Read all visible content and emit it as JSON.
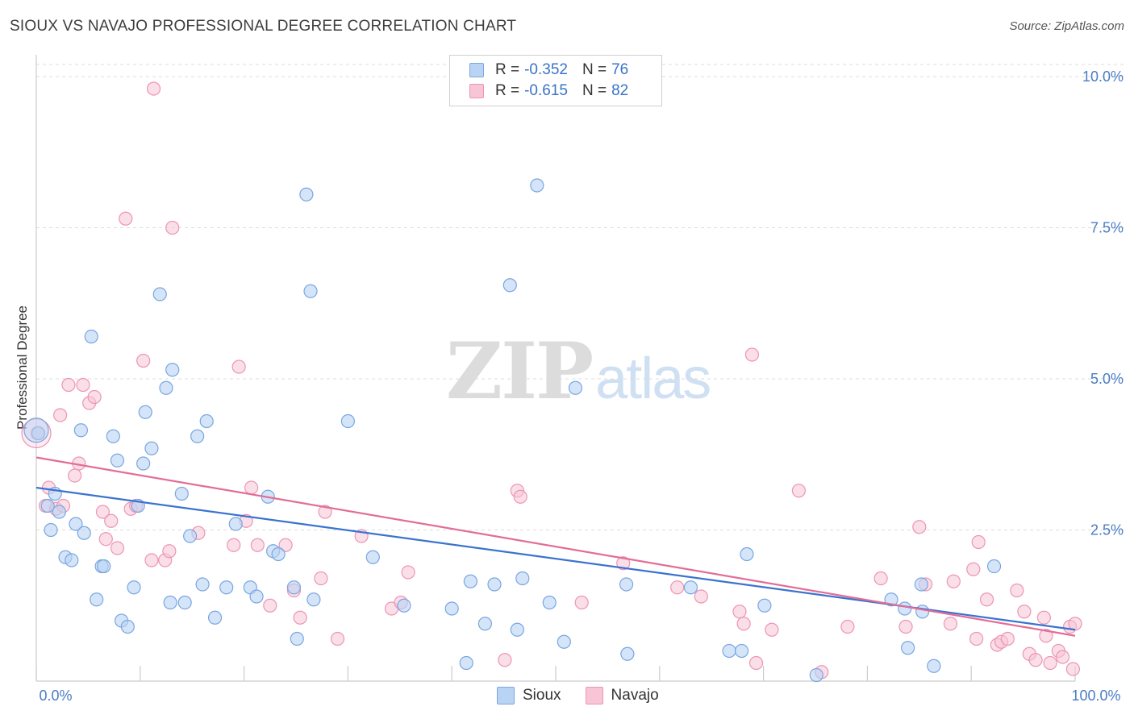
{
  "header": {
    "title": "SIOUX VS NAVAJO PROFESSIONAL DEGREE CORRELATION CHART",
    "source": "Source: ZipAtlas.com"
  },
  "watermark": {
    "zip": "ZIP",
    "atlas": "atlas"
  },
  "legend": {
    "rows": [
      {
        "r_label": "R =",
        "r_value": "-0.352",
        "n_label": "N =",
        "n_value": "76"
      },
      {
        "r_label": "R =",
        "r_value": "-0.615",
        "n_label": "N =",
        "n_value": "82"
      }
    ],
    "bottom": [
      {
        "label": "Sioux"
      },
      {
        "label": "Navajo"
      }
    ]
  },
  "colors": {
    "sioux_fill": "#b9d3f5",
    "sioux_stroke": "#7aa6df",
    "sioux_line": "#3a73cf",
    "navajo_fill": "#f8c5d6",
    "navajo_stroke": "#ec95b4",
    "navajo_line": "#e26d97",
    "tick_label": "#4a7cc4",
    "grid": "#dddddd"
  },
  "chart_data": {
    "type": "scatter",
    "title": "SIOUX VS NAVAJO PROFESSIONAL DEGREE CORRELATION CHART",
    "xlabel": "",
    "ylabel": "Professional Degree",
    "xlim": [
      0,
      100
    ],
    "ylim": [
      0,
      10
    ],
    "x_tick_labels": [
      "0.0%",
      "100.0%"
    ],
    "y_ticks": [
      2.5,
      5.0,
      7.5,
      10.0
    ],
    "y_tick_labels": [
      "2.5%",
      "5.0%",
      "7.5%",
      "10.0%"
    ],
    "grid": true,
    "legend_position": "top-center",
    "series": [
      {
        "name": "Sioux",
        "r": -0.352,
        "n": 76,
        "trend": {
          "x": [
            0,
            100
          ],
          "y": [
            3.2,
            0.85
          ]
        },
        "points": [
          [
            0.2,
            4.1
          ],
          [
            1.1,
            2.9
          ],
          [
            1.4,
            2.5
          ],
          [
            1.8,
            3.1
          ],
          [
            2.2,
            2.8
          ],
          [
            2.8,
            2.05
          ],
          [
            3.4,
            2.0
          ],
          [
            3.8,
            2.6
          ],
          [
            4.3,
            4.15
          ],
          [
            4.6,
            2.45
          ],
          [
            5.3,
            5.7
          ],
          [
            5.8,
            1.35
          ],
          [
            6.3,
            1.9
          ],
          [
            6.5,
            1.9
          ],
          [
            7.4,
            4.05
          ],
          [
            7.8,
            3.65
          ],
          [
            8.2,
            1.0
          ],
          [
            8.8,
            0.9
          ],
          [
            9.4,
            1.55
          ],
          [
            9.8,
            2.9
          ],
          [
            10.3,
            3.6
          ],
          [
            10.5,
            4.45
          ],
          [
            11.1,
            3.85
          ],
          [
            11.9,
            6.4
          ],
          [
            12.5,
            4.85
          ],
          [
            12.9,
            1.3
          ],
          [
            13.1,
            5.15
          ],
          [
            14.0,
            3.1
          ],
          [
            14.3,
            1.3
          ],
          [
            14.8,
            2.4
          ],
          [
            15.5,
            4.05
          ],
          [
            16.0,
            1.6
          ],
          [
            16.4,
            4.3
          ],
          [
            17.2,
            1.05
          ],
          [
            18.3,
            1.55
          ],
          [
            19.2,
            2.6
          ],
          [
            20.6,
            1.55
          ],
          [
            21.2,
            1.4
          ],
          [
            22.3,
            3.05
          ],
          [
            22.8,
            2.15
          ],
          [
            23.3,
            2.1
          ],
          [
            24.8,
            1.55
          ],
          [
            25.1,
            0.7
          ],
          [
            26.0,
            8.05
          ],
          [
            26.4,
            6.45
          ],
          [
            26.7,
            1.35
          ],
          [
            30.0,
            4.3
          ],
          [
            32.4,
            2.05
          ],
          [
            35.4,
            1.25
          ],
          [
            40.0,
            1.2
          ],
          [
            41.4,
            0.3
          ],
          [
            41.8,
            1.65
          ],
          [
            43.2,
            0.95
          ],
          [
            44.1,
            1.6
          ],
          [
            45.6,
            6.55
          ],
          [
            46.3,
            0.85
          ],
          [
            46.8,
            1.7
          ],
          [
            48.2,
            8.2
          ],
          [
            49.4,
            1.3
          ],
          [
            50.8,
            0.65
          ],
          [
            51.9,
            4.85
          ],
          [
            56.8,
            1.6
          ],
          [
            56.9,
            0.45
          ],
          [
            63.0,
            1.55
          ],
          [
            66.7,
            0.5
          ],
          [
            67.9,
            0.5
          ],
          [
            68.4,
            2.1
          ],
          [
            70.1,
            1.25
          ],
          [
            75.1,
            0.1
          ],
          [
            82.3,
            1.35
          ],
          [
            83.6,
            1.2
          ],
          [
            83.9,
            0.55
          ],
          [
            85.2,
            1.6
          ],
          [
            85.3,
            1.15
          ],
          [
            86.4,
            0.25
          ],
          [
            92.2,
            1.9
          ]
        ]
      },
      {
        "name": "Navajo",
        "r": -0.615,
        "n": 82,
        "trend": {
          "x": [
            0,
            100
          ],
          "y": [
            3.7,
            0.75
          ]
        },
        "points": [
          [
            0.1,
            4.1
          ],
          [
            0.9,
            2.9
          ],
          [
            1.2,
            3.2
          ],
          [
            1.9,
            2.85
          ],
          [
            2.3,
            4.4
          ],
          [
            2.6,
            2.9
          ],
          [
            3.1,
            4.9
          ],
          [
            3.7,
            3.4
          ],
          [
            4.1,
            3.6
          ],
          [
            4.5,
            4.9
          ],
          [
            5.1,
            4.6
          ],
          [
            5.6,
            4.7
          ],
          [
            6.4,
            2.8
          ],
          [
            6.7,
            2.35
          ],
          [
            7.2,
            2.65
          ],
          [
            7.8,
            2.2
          ],
          [
            8.6,
            7.65
          ],
          [
            9.1,
            2.85
          ],
          [
            9.6,
            2.9
          ],
          [
            10.3,
            5.3
          ],
          [
            11.1,
            2.0
          ],
          [
            11.3,
            9.8
          ],
          [
            12.4,
            2.0
          ],
          [
            12.8,
            2.15
          ],
          [
            13.1,
            7.5
          ],
          [
            15.6,
            2.45
          ],
          [
            19.0,
            2.25
          ],
          [
            19.5,
            5.2
          ],
          [
            20.2,
            2.65
          ],
          [
            20.7,
            3.2
          ],
          [
            21.3,
            2.25
          ],
          [
            22.5,
            1.25
          ],
          [
            24.0,
            2.25
          ],
          [
            24.8,
            1.5
          ],
          [
            25.4,
            1.05
          ],
          [
            27.4,
            1.7
          ],
          [
            27.8,
            2.8
          ],
          [
            29.0,
            0.7
          ],
          [
            31.3,
            2.4
          ],
          [
            34.2,
            1.2
          ],
          [
            35.1,
            1.3
          ],
          [
            35.8,
            1.8
          ],
          [
            45.1,
            0.35
          ],
          [
            46.3,
            3.15
          ],
          [
            46.6,
            3.05
          ],
          [
            52.5,
            1.3
          ],
          [
            56.5,
            1.95
          ],
          [
            61.7,
            1.55
          ],
          [
            64.0,
            1.4
          ],
          [
            67.7,
            1.15
          ],
          [
            68.1,
            0.95
          ],
          [
            68.9,
            5.4
          ],
          [
            69.3,
            0.3
          ],
          [
            70.8,
            0.85
          ],
          [
            73.4,
            3.15
          ],
          [
            75.6,
            0.15
          ],
          [
            78.1,
            0.9
          ],
          [
            81.3,
            1.7
          ],
          [
            83.7,
            0.9
          ],
          [
            85.0,
            2.55
          ],
          [
            85.6,
            1.6
          ],
          [
            88.0,
            0.95
          ],
          [
            88.3,
            1.65
          ],
          [
            90.2,
            1.85
          ],
          [
            90.5,
            0.7
          ],
          [
            90.7,
            2.3
          ],
          [
            91.5,
            1.35
          ],
          [
            92.5,
            0.6
          ],
          [
            92.9,
            0.65
          ],
          [
            93.5,
            0.7
          ],
          [
            94.4,
            1.5
          ],
          [
            95.1,
            1.15
          ],
          [
            95.6,
            0.45
          ],
          [
            96.2,
            0.35
          ],
          [
            97.0,
            1.05
          ],
          [
            97.2,
            0.75
          ],
          [
            97.6,
            0.3
          ],
          [
            98.4,
            0.5
          ],
          [
            98.8,
            0.4
          ],
          [
            99.5,
            0.9
          ],
          [
            99.8,
            0.2
          ],
          [
            100.0,
            0.95
          ]
        ]
      }
    ]
  }
}
